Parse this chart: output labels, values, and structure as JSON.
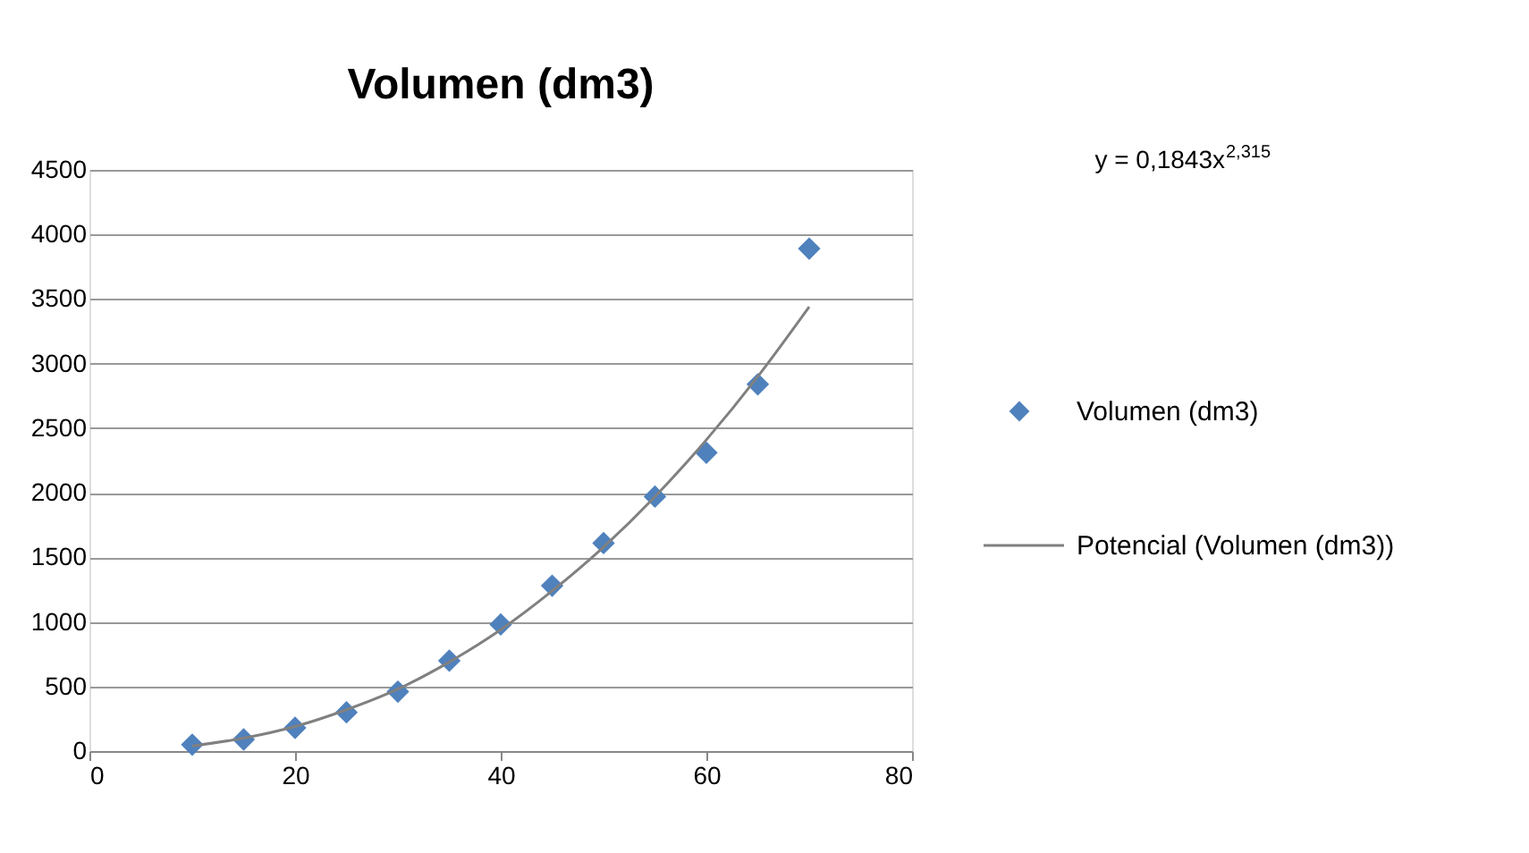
{
  "chart_data": {
    "type": "scatter",
    "title": "Volumen (dm3)",
    "xlim": [
      0,
      80
    ],
    "xticks": [
      0,
      20,
      40,
      60,
      80
    ],
    "ylim": [
      0,
      4500
    ],
    "yticks": [
      0,
      500,
      1000,
      1500,
      2000,
      2500,
      3000,
      3500,
      4000,
      4500
    ],
    "grid": "y",
    "legend": "right",
    "annotations": [
      "y = 0,1843x$^{2,315}$"
    ],
    "series": [
      {
        "name": "Volumen (dm3)",
        "marker": "diamond",
        "color": "#4f81bd",
        "x": [
          10,
          15,
          20,
          25,
          30,
          35,
          40,
          45,
          50,
          55,
          60,
          65,
          70
        ],
        "values": [
          50,
          90,
          180,
          300,
          460,
          700,
          980,
          1280,
          1610,
          1970,
          2310,
          2840,
          3890
        ]
      },
      {
        "name": "Potencial (Volumen (dm3))",
        "type": "line",
        "color": "#808080",
        "line_style": "solid",
        "x": [
          10,
          15,
          20,
          25,
          30,
          35,
          40,
          45,
          50,
          55,
          60,
          65,
          70
        ],
        "values": [
          40,
          100,
          190,
          320,
          480,
          690,
          940,
          1240,
          1580,
          1970,
          2410,
          2900,
          3440
        ]
      }
    ]
  }
}
